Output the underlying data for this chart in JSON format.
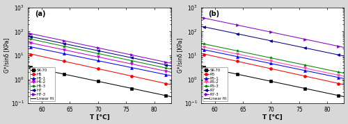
{
  "temps": [
    58,
    64,
    70,
    76,
    82
  ],
  "panel_a": {
    "label": "(a)",
    "series": [
      {
        "name": "SK-70",
        "color": "#000000",
        "marker": "s",
        "values": [
          3.2,
          1.65,
          0.85,
          0.42,
          0.21
        ]
      },
      {
        "name": "H5",
        "color": "#ff0000",
        "marker": "o",
        "values": [
          11.0,
          5.8,
          2.9,
          1.4,
          0.65
        ]
      },
      {
        "name": "H5-1",
        "color": "#0000ff",
        "marker": "^",
        "values": [
          22,
          12,
          6.2,
          3.1,
          1.55
        ]
      },
      {
        "name": "H5-2",
        "color": "#cc00cc",
        "marker": "v",
        "values": [
          33,
          17,
          8.8,
          4.4,
          2.2
        ]
      },
      {
        "name": "H5-3",
        "color": "#008800",
        "marker": "*",
        "values": [
          48,
          24,
          12,
          6.0,
          3.0
        ]
      },
      {
        "name": "H7",
        "color": "#000088",
        "marker": "<",
        "values": [
          60,
          31,
          16,
          8.0,
          4.0
        ]
      },
      {
        "name": "H7-3",
        "color": "#8800cc",
        "marker": ">",
        "values": [
          80,
          41,
          21,
          10.5,
          5.2
        ]
      }
    ]
  },
  "panel_b": {
    "label": "(b)",
    "series": [
      {
        "name": "SK-70",
        "color": "#000000",
        "marker": "s",
        "values": [
          3.2,
          1.65,
          0.85,
          0.42,
          0.21
        ]
      },
      {
        "name": "R5",
        "color": "#ff0000",
        "marker": "o",
        "values": [
          11.0,
          5.8,
          2.9,
          1.4,
          0.65
        ]
      },
      {
        "name": "R5-1",
        "color": "#0000ff",
        "marker": "^",
        "values": [
          17.0,
          9.0,
          4.7,
          2.35,
          1.18
        ]
      },
      {
        "name": "R5-2",
        "color": "#ff44aa",
        "marker": "v",
        "values": [
          22,
          11.5,
          5.9,
          2.95,
          1.48
        ]
      },
      {
        "name": "R5-3",
        "color": "#008800",
        "marker": "*",
        "values": [
          30,
          15.5,
          8.0,
          4.0,
          2.0
        ]
      },
      {
        "name": "R7",
        "color": "#000088",
        "marker": "<",
        "values": [
          155,
          80,
          41,
          20.5,
          10.5
        ]
      },
      {
        "name": "R7-3",
        "color": "#8800cc",
        "marker": ">",
        "values": [
          360,
          185,
          95,
          47,
          24
        ]
      }
    ]
  },
  "ylim": [
    0.1,
    1000
  ],
  "xlim": [
    57.5,
    83
  ],
  "xticks": [
    60,
    65,
    70,
    75,
    80
  ],
  "ylabel": "G*/sinδ [KPa]",
  "xlabel": "T [°C]",
  "bg_color": "#ffffff",
  "fig_bg": "#d8d8d8"
}
